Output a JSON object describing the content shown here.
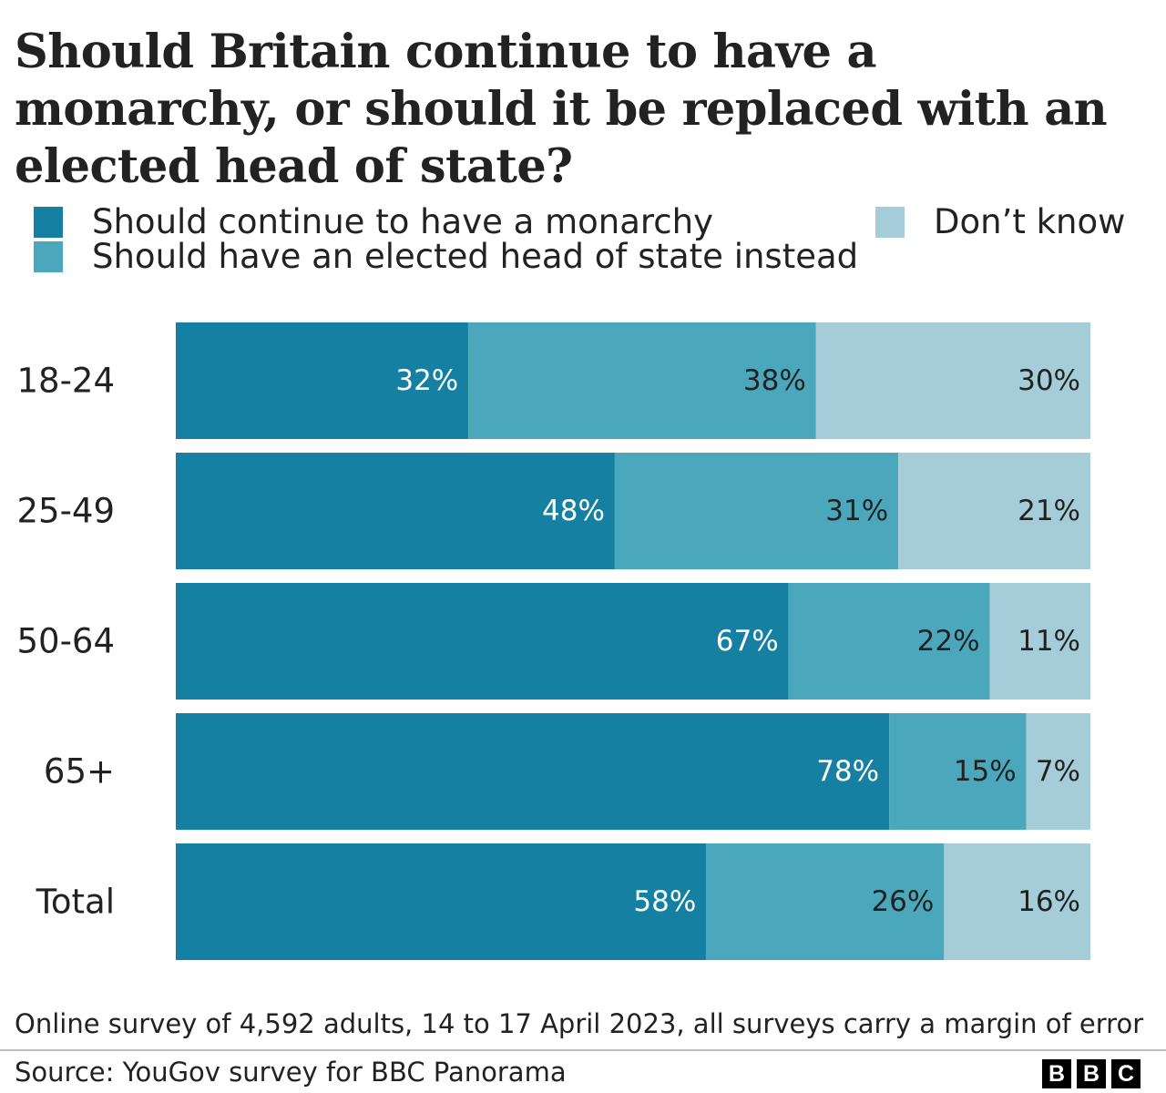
{
  "title": "Should Britain continue to have a monarchy, or should it be replaced with an elected head of state?",
  "legend": [
    {
      "label": "Should continue to have a monarchy",
      "color": "#1680a2"
    },
    {
      "label": "Should have an elected head of state instead",
      "color": "#4ba7bc"
    },
    {
      "label": "Don’t know",
      "color": "#a4cdd9"
    }
  ],
  "chart_data": {
    "type": "bar",
    "orientation": "horizontal",
    "stacked": true,
    "categories": [
      "18-24",
      "25-49",
      "50-64",
      "65+",
      "Total"
    ],
    "series": [
      {
        "name": "Should continue to have a monarchy",
        "values": [
          32,
          48,
          67,
          78,
          58
        ],
        "color": "#1680a2",
        "label_color": "#ffffff"
      },
      {
        "name": "Should have an elected head of state instead",
        "values": [
          38,
          31,
          22,
          15,
          26
        ],
        "color": "#4ba7bc",
        "label_color": "#222222"
      },
      {
        "name": "Don’t know",
        "values": [
          30,
          21,
          11,
          7,
          16
        ],
        "color": "#a4cdd9",
        "label_color": "#222222"
      }
    ],
    "value_suffix": "%",
    "xlim": [
      0,
      100
    ]
  },
  "note": "Online survey of 4,592 adults, 14 to 17 April 2023, all surveys carry a margin of error",
  "source": "Source: YouGov survey for BBC Panorama",
  "logo_letters": [
    "B",
    "B",
    "C"
  ]
}
